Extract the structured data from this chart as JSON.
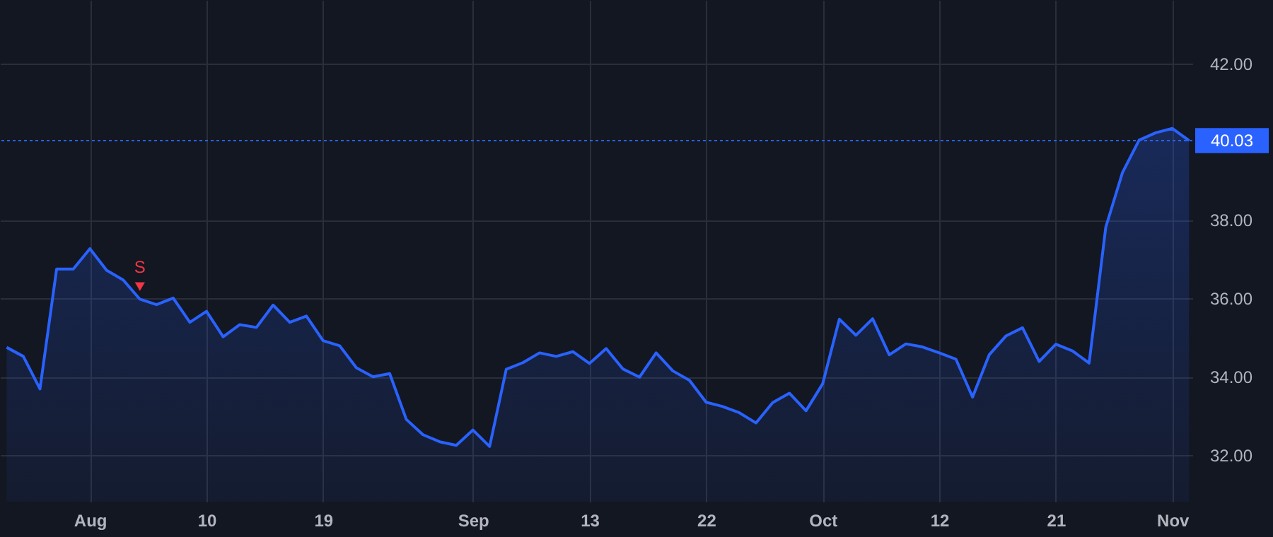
{
  "chart_data": {
    "type": "area",
    "categories": [
      null,
      null,
      null,
      null,
      null,
      "Aug",
      null,
      null,
      null,
      null,
      null,
      null,
      "10",
      null,
      null,
      null,
      null,
      null,
      null,
      "19",
      null,
      null,
      null,
      null,
      null,
      null,
      null,
      null,
      "Sep",
      null,
      null,
      null,
      null,
      null,
      null,
      "13",
      null,
      null,
      null,
      null,
      null,
      null,
      "22",
      null,
      null,
      null,
      null,
      null,
      null,
      "Oct",
      null,
      null,
      null,
      null,
      null,
      null,
      "12",
      null,
      null,
      null,
      null,
      null,
      null,
      "21",
      null,
      null,
      null,
      null,
      null,
      null,
      "Nov",
      null
    ],
    "series": [
      {
        "color": "#2962ff",
        "values": [
          34.75,
          34.52,
          33.69,
          36.75,
          36.75,
          37.27,
          36.72,
          36.47,
          35.98,
          35.84,
          36.01,
          35.39,
          35.67,
          35.02,
          35.33,
          35.26,
          35.83,
          35.39,
          35.55,
          34.92,
          34.79,
          34.23,
          34.0,
          34.08,
          32.91,
          32.52,
          32.34,
          32.25,
          32.64,
          32.22,
          34.19,
          34.36,
          34.61,
          34.52,
          34.64,
          34.34,
          34.72,
          34.2,
          33.99,
          34.61,
          34.15,
          33.91,
          33.35,
          33.24,
          33.08,
          32.82,
          33.34,
          33.58,
          33.13,
          33.82,
          35.47,
          35.06,
          35.48,
          34.56,
          34.84,
          34.76,
          34.61,
          34.45,
          33.48,
          34.56,
          35.04,
          35.25,
          34.39,
          34.83,
          34.66,
          34.35,
          37.82,
          39.21,
          40.04,
          40.23,
          40.34,
          40.03
        ]
      },
      {
        "type": "scatter",
        "name": "S",
        "color": "#f23645",
        "marker": "triangle",
        "values": [
          null,
          null,
          null,
          null,
          null,
          null,
          null,
          null,
          36.3,
          null,
          null,
          null,
          null,
          null,
          null,
          null,
          null,
          null,
          null,
          null,
          null,
          null,
          null,
          null,
          null,
          null,
          null,
          null,
          null,
          null,
          null,
          null,
          null,
          null,
          null,
          null,
          null,
          null,
          null,
          null,
          null,
          null,
          null,
          null,
          null,
          null,
          null,
          null,
          null,
          null,
          null,
          null,
          null,
          null,
          null,
          null,
          null,
          null,
          null,
          null,
          null,
          null,
          null,
          null,
          null,
          null,
          null,
          null,
          null,
          null,
          null,
          null
        ]
      }
    ],
    "ylim": [
      30.81,
      43.62
    ],
    "yticks": [
      {
        "value": 32,
        "label": "32.00"
      },
      {
        "value": 34,
        "label": "34.00"
      },
      {
        "value": 36,
        "label": "36.00"
      },
      {
        "value": 38,
        "label": "38.00"
      },
      {
        "value": 42,
        "label": "42.00"
      }
    ],
    "ref_lines": [
      {
        "axis": "y",
        "value": 40.03,
        "label": "40.03",
        "color": "#2962ff",
        "line_style": "dotted"
      }
    ],
    "grid": true,
    "marker": "none",
    "line_style": "solid"
  }
}
